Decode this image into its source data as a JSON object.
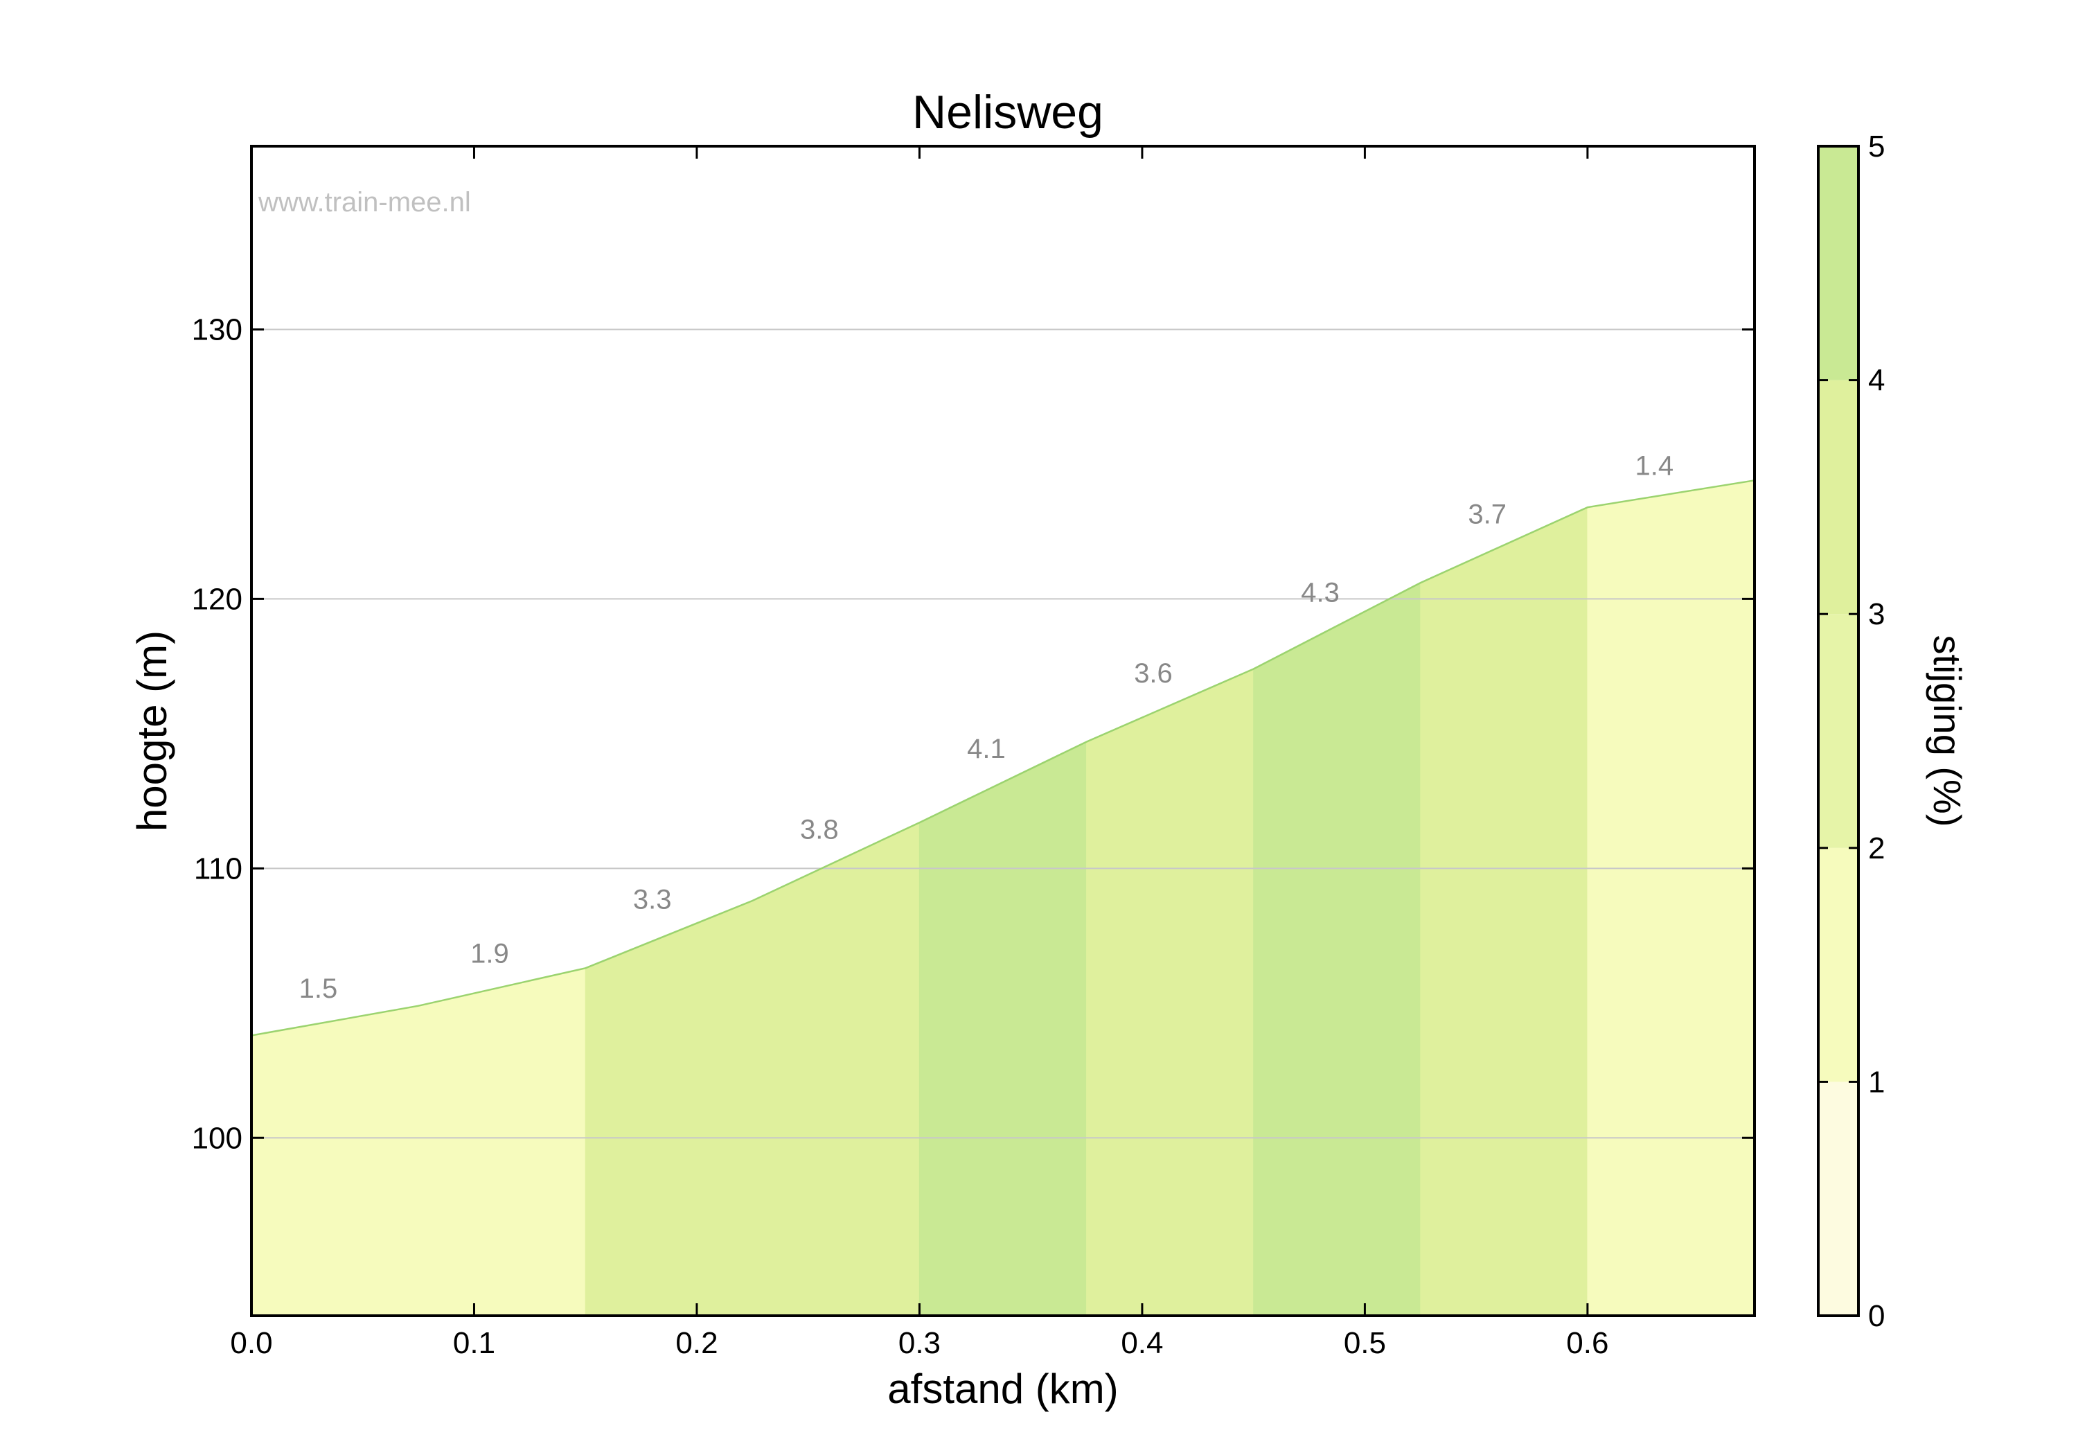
{
  "chart_data": {
    "type": "area",
    "title": "Nelisweg",
    "xlabel": "afstand (km)",
    "ylabel": "hoogte (m)",
    "xlim": [
      0.0,
      0.675
    ],
    "ylim": [
      93.4,
      136.8
    ],
    "x_ticks": [
      "0.0",
      "0.1",
      "0.2",
      "0.3",
      "0.4",
      "0.5",
      "0.6"
    ],
    "y_ticks": [
      "100",
      "110",
      "120",
      "130"
    ],
    "y_tick_values": [
      100,
      110,
      120,
      130
    ],
    "grid": "horizontal",
    "watermark": "www.train-mee.nl",
    "profile": {
      "x": [
        0.0,
        0.075,
        0.15,
        0.225,
        0.3,
        0.375,
        0.45,
        0.525,
        0.6,
        0.675
      ],
      "y": [
        103.8,
        104.9,
        106.3,
        108.8,
        111.7,
        114.7,
        117.4,
        120.6,
        123.4,
        124.4
      ]
    },
    "segments": [
      {
        "x0": 0.0,
        "x1": 0.15,
        "grade": "1.5",
        "label_x": 0.03,
        "label_y": 105.2
      },
      {
        "x0": 0.0,
        "x1": 0.15,
        "grade": "1.9",
        "label_x": 0.107,
        "label_y": 106.5
      },
      {
        "x0": 0.15,
        "x1": 0.3,
        "grade": "3.3",
        "label_x": 0.18,
        "label_y": 108.5
      },
      {
        "x0": 0.15,
        "x1": 0.3,
        "grade": "3.8",
        "label_x": 0.255,
        "label_y": 111.1
      },
      {
        "x0": 0.3,
        "x1": 0.375,
        "grade": "4.1",
        "label_x": 0.33,
        "label_y": 114.1
      },
      {
        "x0": 0.375,
        "x1": 0.45,
        "grade": "3.6",
        "label_x": 0.405,
        "label_y": 116.9
      },
      {
        "x0": 0.45,
        "x1": 0.525,
        "grade": "4.3",
        "label_x": 0.48,
        "label_y": 119.9
      },
      {
        "x0": 0.525,
        "x1": 0.6,
        "grade": "3.7",
        "label_x": 0.555,
        "label_y": 122.8
      },
      {
        "x0": 0.6,
        "x1": 0.675,
        "grade": "1.4",
        "label_x": 0.63,
        "label_y": 124.6
      }
    ],
    "bands": [
      {
        "x0": 0.0,
        "x1": 0.15,
        "color": "#f6fbbd"
      },
      {
        "x0": 0.15,
        "x1": 0.3,
        "color": "#dff09d"
      },
      {
        "x0": 0.3,
        "x1": 0.375,
        "color": "#c9e994"
      },
      {
        "x0": 0.375,
        "x1": 0.45,
        "color": "#dff09d"
      },
      {
        "x0": 0.45,
        "x1": 0.525,
        "color": "#c9e994"
      },
      {
        "x0": 0.525,
        "x1": 0.6,
        "color": "#dff09d"
      },
      {
        "x0": 0.6,
        "x1": 0.675,
        "color": "#f6fbbd"
      }
    ],
    "line_color": "#9bd36f",
    "colorbar": {
      "label": "stijging (%)",
      "ticks": [
        "0",
        "1",
        "2",
        "3",
        "4",
        "5"
      ],
      "bands": [
        {
          "from": 0,
          "to": 1,
          "color": "#fdfbe0"
        },
        {
          "from": 1,
          "to": 2,
          "color": "#f6fbbd"
        },
        {
          "from": 2,
          "to": 3,
          "color": "#e6f4a8"
        },
        {
          "from": 3,
          "to": 4,
          "color": "#dff09d"
        },
        {
          "from": 4,
          "to": 5,
          "color": "#c9e994"
        }
      ]
    }
  }
}
